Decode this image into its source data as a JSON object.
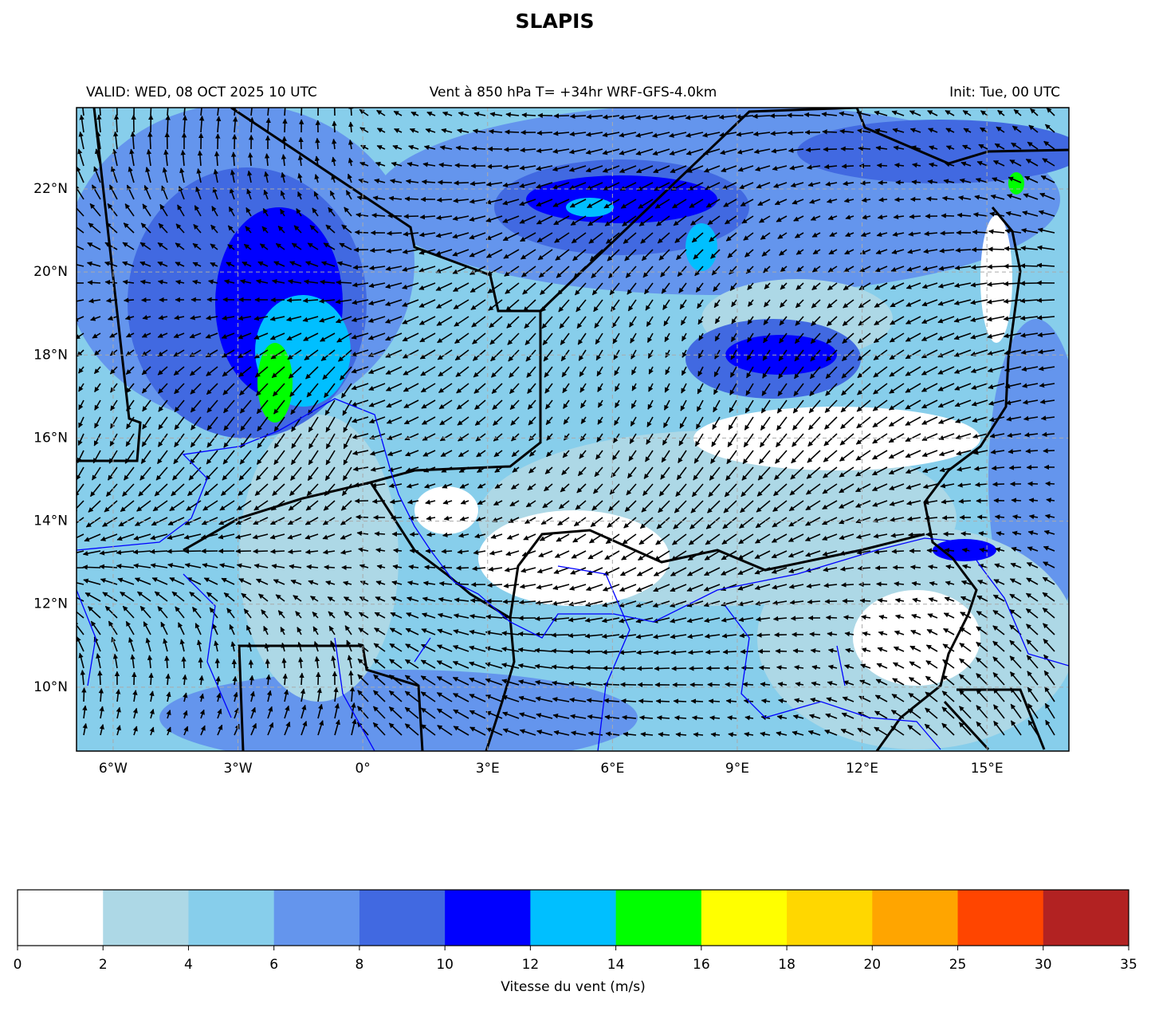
{
  "title": "SLAPIS",
  "header": {
    "valid": "VALID: WED, 08 OCT 2025 10 UTC",
    "center": "Vent à 850 hPa T= +34hr  WRF-GFS-4.0km",
    "init": "Init: Tue, 00 UTC"
  },
  "map": {
    "xlim": [
      -6.88,
      16.97
    ],
    "ylim": [
      8.46,
      23.96
    ],
    "xticks": [
      {
        "value": -6,
        "label": "6°W"
      },
      {
        "value": -3,
        "label": "3°W"
      },
      {
        "value": 0,
        "label": "0°"
      },
      {
        "value": 3,
        "label": "3°E"
      },
      {
        "value": 6,
        "label": "6°E"
      },
      {
        "value": 9,
        "label": "9°E"
      },
      {
        "value": 12,
        "label": "12°E"
      },
      {
        "value": 15,
        "label": "15°E"
      }
    ],
    "yticks": [
      {
        "value": 10,
        "label": "10°N"
      },
      {
        "value": 12,
        "label": "12°N"
      },
      {
        "value": 14,
        "label": "14°N"
      },
      {
        "value": 16,
        "label": "16°N"
      },
      {
        "value": 18,
        "label": "18°N"
      },
      {
        "value": 20,
        "label": "20°N"
      },
      {
        "value": 22,
        "label": "22°N"
      }
    ],
    "grid": true
  },
  "colorbar": {
    "boundaries": [
      0,
      2,
      4,
      6,
      8,
      10,
      12,
      14,
      16,
      18,
      20,
      25,
      30,
      35
    ],
    "colors": [
      "#ffffff",
      "#add8e6",
      "#87ceeb",
      "#6495ed",
      "#4169e1",
      "#0000ff",
      "#00bfff",
      "#00ff00",
      "#ffff00",
      "#ffd700",
      "#ffa500",
      "#ff4500",
      "#b22222"
    ],
    "label": "Vitesse du vent (m/s)"
  }
}
